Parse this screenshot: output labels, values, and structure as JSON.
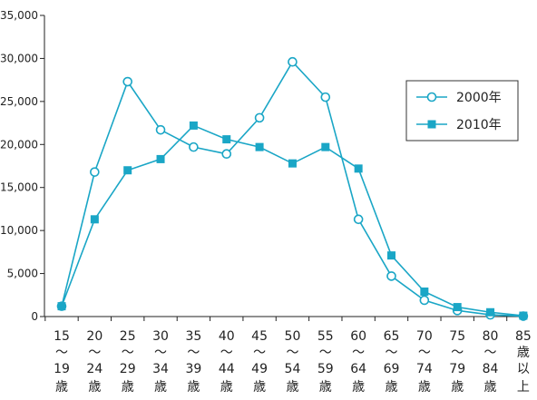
{
  "chart_data": {
    "type": "line",
    "title": "",
    "xlabel": "",
    "ylabel": "",
    "ylim": [
      0,
      35000
    ],
    "yticks": [
      0,
      5000,
      10000,
      15000,
      20000,
      25000,
      30000,
      35000
    ],
    "ytick_labels": [
      "0",
      "5,000",
      "10,000",
      "15,000",
      "20,000",
      "25,000",
      "30,000",
      "35,000"
    ],
    "grid": false,
    "legend": "right",
    "categories": [
      [
        "15",
        "～",
        "19",
        "歳"
      ],
      [
        "20",
        "～",
        "24",
        "歳"
      ],
      [
        "25",
        "～",
        "29",
        "歳"
      ],
      [
        "30",
        "～",
        "34",
        "歳"
      ],
      [
        "35",
        "～",
        "39",
        "歳"
      ],
      [
        "40",
        "～",
        "44",
        "歳"
      ],
      [
        "45",
        "～",
        "49",
        "歳"
      ],
      [
        "50",
        "～",
        "54",
        "歳"
      ],
      [
        "55",
        "～",
        "59",
        "歳"
      ],
      [
        "60",
        "～",
        "64",
        "歳"
      ],
      [
        "65",
        "～",
        "69",
        "歳"
      ],
      [
        "70",
        "～",
        "74",
        "歳"
      ],
      [
        "75",
        "～",
        "79",
        "歳"
      ],
      [
        "80",
        "～",
        "84",
        "歳"
      ],
      [
        "85",
        "歳",
        "以",
        "上"
      ]
    ],
    "series": [
      {
        "name": "2000年",
        "marker": "open-circle",
        "color": "#1aa6c6",
        "values": [
          1200,
          16800,
          27300,
          21700,
          19700,
          18900,
          23100,
          29600,
          25500,
          11300,
          4700,
          1900,
          700,
          200,
          50
        ]
      },
      {
        "name": "2010年",
        "marker": "filled-square",
        "color": "#1aa6c6",
        "values": [
          1200,
          11300,
          17000,
          18300,
          22200,
          20600,
          19700,
          17800,
          19700,
          17200,
          7100,
          2900,
          1100,
          500,
          100
        ]
      }
    ]
  }
}
